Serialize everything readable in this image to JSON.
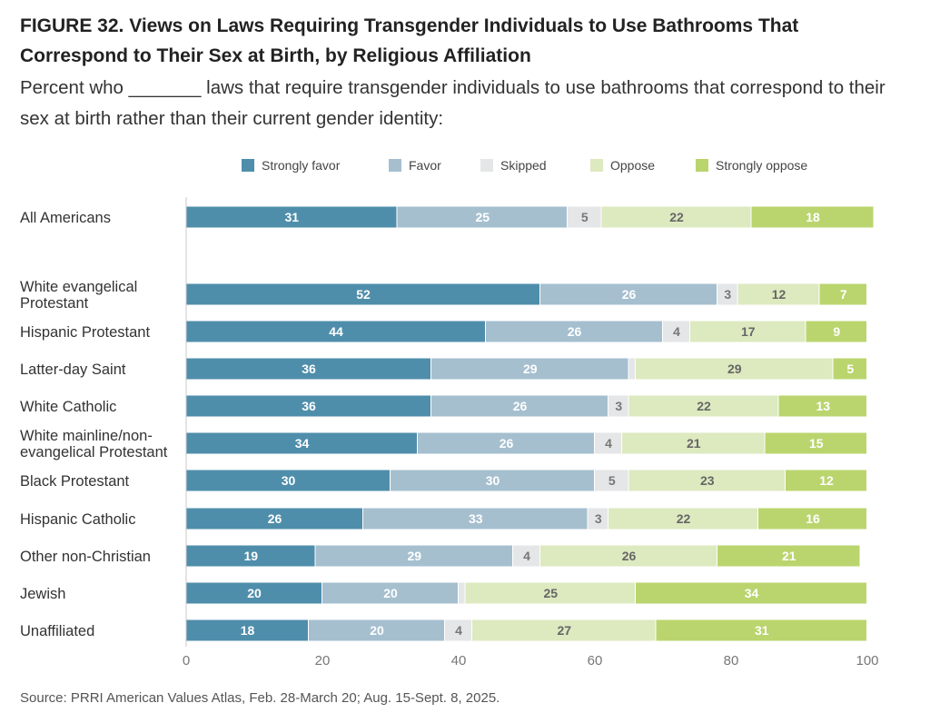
{
  "header": {
    "title": "FIGURE 32.  Views on Laws Requiring Transgender Individuals to Use Bathrooms That Correspond to Their Sex at Birth, by Religious Affiliation",
    "subtitle": "Percent who _______ laws that require transgender individuals to use bathrooms that correspond to their sex at birth rather than their current gender identity:"
  },
  "footer": {
    "source": "Source: PRRI American Values Atlas, Feb. 28-March 20; Aug. 15-Sept. 8, 2025."
  },
  "chart_data": {
    "type": "bar",
    "orientation": "horizontal",
    "stacked": true,
    "title": "FIGURE 32.  Views on Laws Requiring Transgender Individuals to Use Bathrooms That Correspond to Their Sex at Birth, by Religious Affiliation",
    "xlim": [
      0,
      100
    ],
    "x_ticks": [
      0,
      20,
      40,
      60,
      80,
      100
    ],
    "grid": false,
    "legend_position": "top",
    "categories": [
      "All Americans",
      "White evangelical Protestant",
      "Hispanic Protestant",
      "Latter-day Saint",
      "White Catholic",
      "White mainline/non-evangelical Protestant",
      "Black Protestant",
      "Hispanic Catholic",
      "Other non-Christian",
      "Jewish",
      "Unaffiliated"
    ],
    "category_lines": [
      [
        "All Americans"
      ],
      [
        "White evangelical",
        "Protestant"
      ],
      [
        "Hispanic Protestant"
      ],
      [
        "Latter-day Saint"
      ],
      [
        "White Catholic"
      ],
      [
        "White mainline/non-",
        "evangelical Protestant"
      ],
      [
        "Black Protestant"
      ],
      [
        "Hispanic Catholic"
      ],
      [
        "Other non-Christian"
      ],
      [
        "Jewish"
      ],
      [
        "Unaffiliated"
      ]
    ],
    "series": [
      {
        "name": "Strongly favor",
        "color": "#4f8eab",
        "label_color": "#ffffff",
        "values": [
          31,
          52,
          44,
          36,
          36,
          34,
          30,
          26,
          19,
          20,
          18
        ]
      },
      {
        "name": "Favor",
        "color": "#a5bfcf",
        "label_color": "#ffffff",
        "values": [
          25,
          26,
          26,
          29,
          26,
          26,
          30,
          33,
          29,
          20,
          20
        ]
      },
      {
        "name": "Skipped",
        "color": "#e4e6e7",
        "label_color": "#777777",
        "values": [
          5,
          3,
          4,
          1,
          3,
          4,
          5,
          3,
          4,
          1,
          4
        ]
      },
      {
        "name": "Oppose",
        "color": "#dde9bf",
        "label_color": "#666666",
        "values": [
          22,
          12,
          17,
          29,
          22,
          21,
          23,
          22,
          26,
          25,
          27
        ]
      },
      {
        "name": "Strongly oppose",
        "color": "#bad56e",
        "label_color": "#ffffff",
        "values": [
          18,
          7,
          9,
          5,
          13,
          15,
          12,
          16,
          21,
          34,
          31
        ]
      }
    ],
    "hidden_labels": [
      [
        2,
        3
      ],
      [
        2,
        9
      ]
    ]
  }
}
